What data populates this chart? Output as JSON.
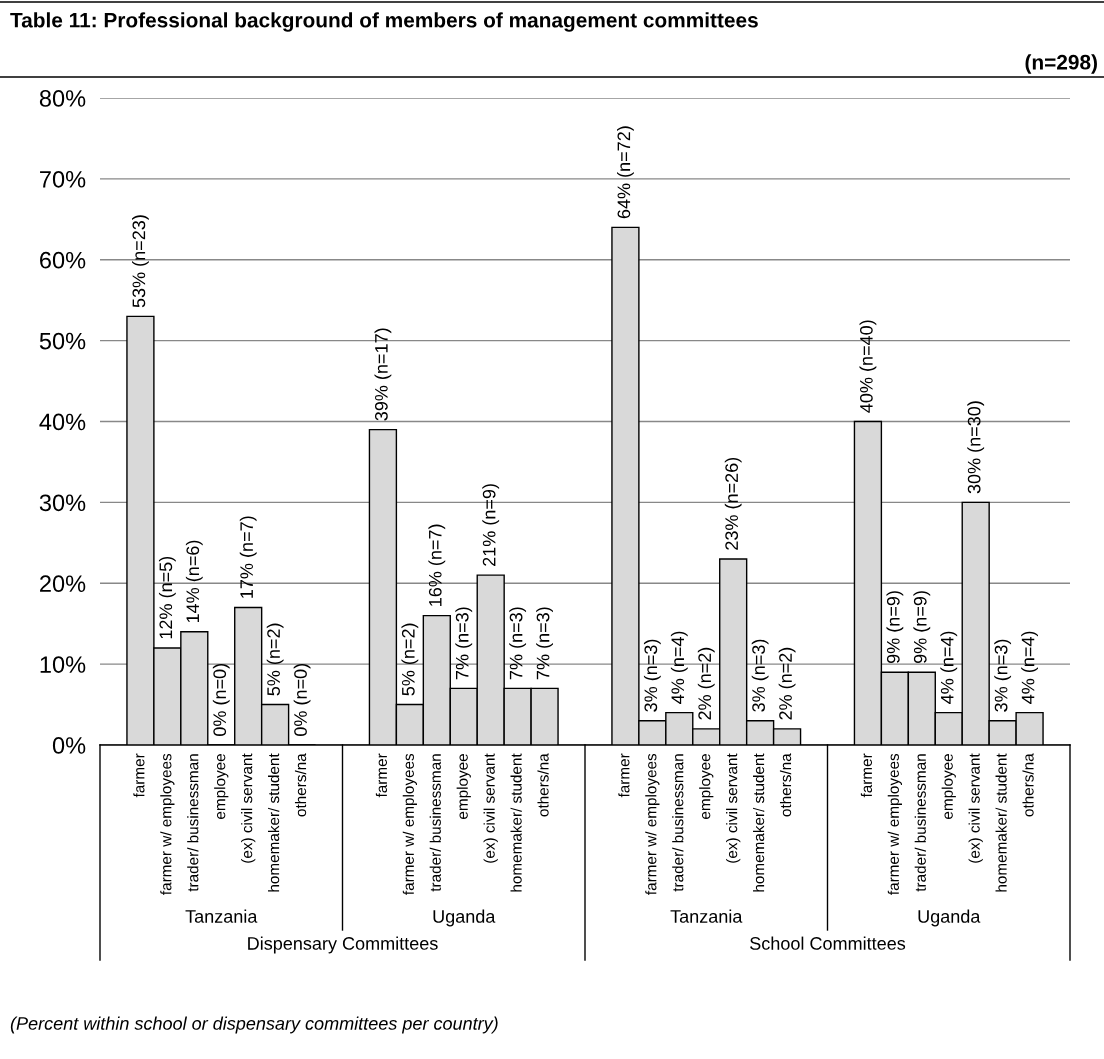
{
  "chart_data": {
    "type": "bar",
    "title": "Table 11: Professional background of members of management committees",
    "subtitle": "(n=298)",
    "categories": [
      null,
      "farmer",
      "farmer w/ employees",
      "trader/ businessman",
      "employee",
      "(ex) civil servant",
      "homemaker/ student",
      "others/na",
      null,
      null,
      "farmer",
      "farmer w/ employees",
      "trader/ businessman",
      "employee",
      "(ex) civil servant",
      "homemaker/ student",
      "others/na",
      null,
      null,
      "farmer",
      "farmer w/ employees",
      "trader/ businessman",
      "employee",
      "(ex) civil servant",
      "homemaker/ student",
      "others/na",
      null,
      null,
      "farmer",
      "farmer w/ employees",
      "trader/ businessman",
      "employee",
      "(ex) civil servant",
      "homemaker/ student",
      "others/na",
      null
    ],
    "values": [
      null,
      53,
      12,
      14,
      0,
      17,
      5,
      0,
      null,
      null,
      39,
      5,
      16,
      7,
      21,
      7,
      7,
      null,
      null,
      64,
      3,
      4,
      2,
      23,
      3,
      2,
      null,
      null,
      40,
      9,
      9,
      4,
      30,
      3,
      4,
      null
    ],
    "value_labels": [
      null,
      "53% (n=23)",
      "12% (n=5)",
      "14% (n=6)",
      "0% (n=0)",
      "17% (n=7)",
      "5% (n=2)",
      "0% (n=0)",
      null,
      null,
      "39% (n=17)",
      "5% (n=2)",
      "16% (n=7)",
      "7% (n=3)",
      "21% (n=9)",
      "7% (n=3)",
      "7% (n=3)",
      null,
      null,
      "64% (n=72)",
      "3% (n=3)",
      "4% (n=4)",
      "2% (n=2)",
      "23% (n=26)",
      "3% (n=3)",
      "2% (n=2)",
      null,
      null,
      "40% (n=40)",
      "9% (n=9)",
      "9% (n=9)",
      "4% (n=4)",
      "30% (n=30)",
      "3% (n=3)",
      "4% (n=4)",
      null
    ],
    "color": "#d9d9d9",
    "ylim": [
      0,
      80
    ],
    "yticks": [
      {
        "value": 0,
        "label": "0%"
      },
      {
        "value": 10,
        "label": "10%"
      },
      {
        "value": 20,
        "label": "20%"
      },
      {
        "value": 30,
        "label": "30%"
      },
      {
        "value": 40,
        "label": "40%"
      },
      {
        "value": 50,
        "label": "50%"
      },
      {
        "value": 60,
        "label": "60%"
      },
      {
        "value": 70,
        "label": "70%"
      },
      {
        "value": 80,
        "label": "80%"
      }
    ],
    "grid": "y",
    "annotations": [
      "Tanzania",
      "Uganda",
      "Tanzania",
      "Uganda",
      "Dispensary Committees",
      "School Committees",
      "(Percent within school or dispensary committees per country)"
    ]
  }
}
